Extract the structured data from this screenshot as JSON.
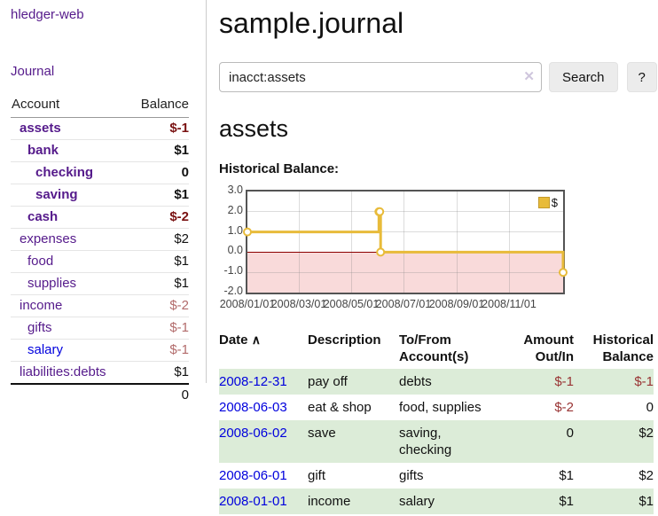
{
  "sidebar": {
    "brand": "hledger-web",
    "nav": {
      "journal": "Journal"
    },
    "accounts_table": {
      "headers": {
        "account": "Account",
        "balance": "Balance"
      },
      "rows": [
        {
          "name": "assets",
          "balance": "$-1",
          "level": 1,
          "bold": true,
          "link": "visited"
        },
        {
          "name": "bank",
          "balance": "$1",
          "level": 2,
          "bold": true,
          "link": "visited"
        },
        {
          "name": "checking",
          "balance": "0",
          "level": 3,
          "bold": true,
          "link": "visited"
        },
        {
          "name": "saving",
          "balance": "$1",
          "level": 3,
          "bold": true,
          "link": "visited"
        },
        {
          "name": "cash",
          "balance": "$-2",
          "level": 2,
          "bold": true,
          "link": "visited"
        },
        {
          "name": "expenses",
          "balance": "$2",
          "level": 1,
          "bold": false,
          "link": "visited"
        },
        {
          "name": "food",
          "balance": "$1",
          "level": 2,
          "bold": false,
          "link": "visited"
        },
        {
          "name": "supplies",
          "balance": "$1",
          "level": 2,
          "bold": false,
          "link": "visited"
        },
        {
          "name": "income",
          "balance": "$-2",
          "level": 1,
          "bold": false,
          "link": "visited"
        },
        {
          "name": "gifts",
          "balance": "$-1",
          "level": 2,
          "bold": false,
          "link": "visited"
        },
        {
          "name": "salary",
          "balance": "$-1",
          "level": 2,
          "bold": false,
          "link": "unvisited"
        },
        {
          "name": "liabilities:debts",
          "balance": "$1",
          "level": 1,
          "bold": false,
          "link": "visited"
        }
      ],
      "total": "0"
    }
  },
  "header": {
    "title": "sample.journal"
  },
  "search": {
    "value": "inacct:assets",
    "clear_icon": "✕",
    "button_label": "Search",
    "help_label": "?"
  },
  "account_page": {
    "heading": "assets",
    "chart_label": "Historical Balance:"
  },
  "chart_data": {
    "type": "line",
    "step": true,
    "title": "Historical Balance:",
    "series": [
      {
        "name": "$",
        "color": "#e8bb3a",
        "points": [
          [
            "2008-01-01",
            1
          ],
          [
            "2008-06-01",
            2
          ],
          [
            "2008-06-02",
            2
          ],
          [
            "2008-06-03",
            0
          ],
          [
            "2008-12-31",
            -1
          ]
        ]
      }
    ],
    "x_range": [
      "2008-01-01",
      "2008-12-31"
    ],
    "ylim": [
      -2,
      3
    ],
    "yticks": [
      "3.0",
      "2.0",
      "1.0",
      "0.0",
      "-1.0",
      "-2.0"
    ],
    "xticks": [
      "2008/01/01",
      "2008/03/01",
      "2008/05/01",
      "2008/07/01",
      "2008/09/01",
      "2008/11/01"
    ],
    "legend": "$",
    "legend_position": "top-right",
    "grid": true,
    "accent_color": "#e8bb3a",
    "negative_region_color": "#f9dada",
    "zero_line_color": "#8b0000"
  },
  "register_table": {
    "headers": {
      "date": "Date",
      "sort_caret": "∧",
      "description": "Description",
      "accounts": "To/From Account(s)",
      "amount": "Amount Out/In",
      "balance": "Historical Balance"
    },
    "rows": [
      {
        "date": "2008-12-31",
        "description": "pay off",
        "accounts": "debts",
        "amount": "$-1",
        "balance": "$-1"
      },
      {
        "date": "2008-06-03",
        "description": "eat & shop",
        "accounts": "food, supplies",
        "amount": "$-2",
        "balance": "0"
      },
      {
        "date": "2008-06-02",
        "description": "save",
        "accounts": "saving, checking",
        "amount": "0",
        "balance": "$2"
      },
      {
        "date": "2008-06-01",
        "description": "gift",
        "accounts": "gifts",
        "amount": "$1",
        "balance": "$2"
      },
      {
        "date": "2008-01-01",
        "description": "income",
        "accounts": "salary",
        "amount": "$1",
        "balance": "$1"
      }
    ]
  }
}
